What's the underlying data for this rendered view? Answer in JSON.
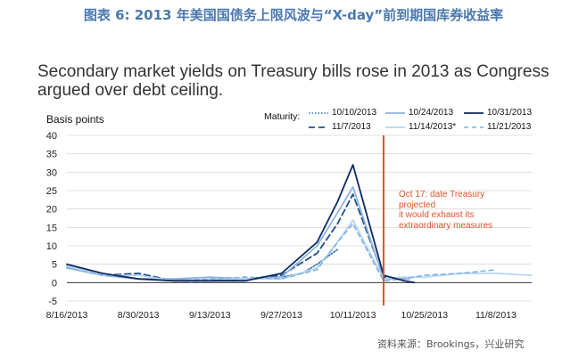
{
  "header": {
    "cn_title": "图表 6:  2013 年美国国债务上限风波与“X-day”前到期国库券收益率",
    "source": "资料来源：Brookings，兴业研究"
  },
  "chart_data": {
    "type": "line",
    "title": "Secondary market yields on Treasury bills rose in 2013 as Congress argued over debt ceiling.",
    "ylabel": "Basis points",
    "legend_title": "Maturity:",
    "ylim": [
      -5,
      40
    ],
    "yticks": [
      -5,
      0,
      5,
      10,
      15,
      20,
      25,
      30,
      35,
      40
    ],
    "xticks": [
      "8/16/2013",
      "8/30/2013",
      "9/13/2013",
      "9/27/2013",
      "10/11/2013",
      "10/25/2013",
      "11/8/2013"
    ],
    "xrange_days": [
      0,
      91
    ],
    "xtick_days": [
      0,
      14,
      28,
      42,
      56,
      70,
      84
    ],
    "annotation": {
      "day": 62,
      "text_lines": [
        "Oct 17: date Treasury projected",
        "it would exhaust its",
        "extraordinary measures"
      ]
    },
    "series": [
      {
        "name": "10/10/2013",
        "color": "#2e6db4",
        "dash": "1.5,2",
        "width": 1.6,
        "days": [
          0,
          7,
          14,
          21,
          28,
          35,
          42,
          46,
          49,
          53
        ],
        "values": [
          4,
          2,
          1,
          1,
          0.5,
          1,
          1.5,
          2.5,
          5,
          9
        ]
      },
      {
        "name": "11/7/2013",
        "color": "#1f4e8c",
        "dash": "7,4",
        "width": 1.8,
        "days": [
          0,
          7,
          14,
          21,
          28,
          35,
          42,
          49,
          53,
          56,
          62,
          66
        ],
        "values": [
          4.5,
          2,
          2.5,
          0.5,
          0.5,
          1,
          2,
          8,
          16,
          24,
          1.5,
          1
        ]
      },
      {
        "name": "10/24/2013",
        "color": "#8eb4dc",
        "dash": "",
        "width": 1.8,
        "days": [
          0,
          7,
          14,
          21,
          28,
          35,
          42,
          49,
          53,
          56,
          62,
          67
        ],
        "values": [
          4,
          2,
          1,
          1,
          1.5,
          1,
          1.5,
          10,
          19,
          26,
          1,
          1
        ]
      },
      {
        "name": "11/14/2013",
        "color": "#b8d6ef",
        "dash": "",
        "width": 1.8,
        "days": [
          0,
          7,
          14,
          21,
          28,
          35,
          42,
          49,
          53,
          56,
          62,
          66,
          70,
          77,
          84,
          91
        ],
        "values": [
          4.5,
          2,
          2,
          0.5,
          1,
          1,
          1,
          4,
          11,
          17,
          1,
          1.5,
          1.5,
          2.5,
          2.5,
          2
        ]
      },
      {
        "name": "11/21/2013",
        "color": "#7fb2e2",
        "dash": "5,4",
        "width": 1.6,
        "days": [
          0,
          7,
          14,
          21,
          28,
          35,
          42,
          49,
          53,
          56,
          62,
          66,
          70,
          77,
          84
        ],
        "values": [
          4,
          2,
          1,
          0.5,
          1,
          1.5,
          1,
          3.5,
          11,
          16,
          0.5,
          1,
          2,
          2.5,
          3.5
        ]
      },
      {
        "name": "10/31/2013",
        "color": "#0e2a63",
        "dash": "",
        "width": 1.8,
        "days": [
          0,
          7,
          14,
          21,
          28,
          35,
          42,
          49,
          53,
          56,
          62,
          66,
          68
        ],
        "values": [
          5,
          2.5,
          1,
          0.5,
          0.5,
          0.5,
          2.5,
          11,
          22,
          32,
          2,
          0.5,
          0
        ]
      }
    ],
    "legend_order": [
      "10/10/2013",
      "10/24/2013",
      "10/31/2013",
      "11/7/2013",
      "11/14/2013*",
      "11/21/2013"
    ]
  }
}
